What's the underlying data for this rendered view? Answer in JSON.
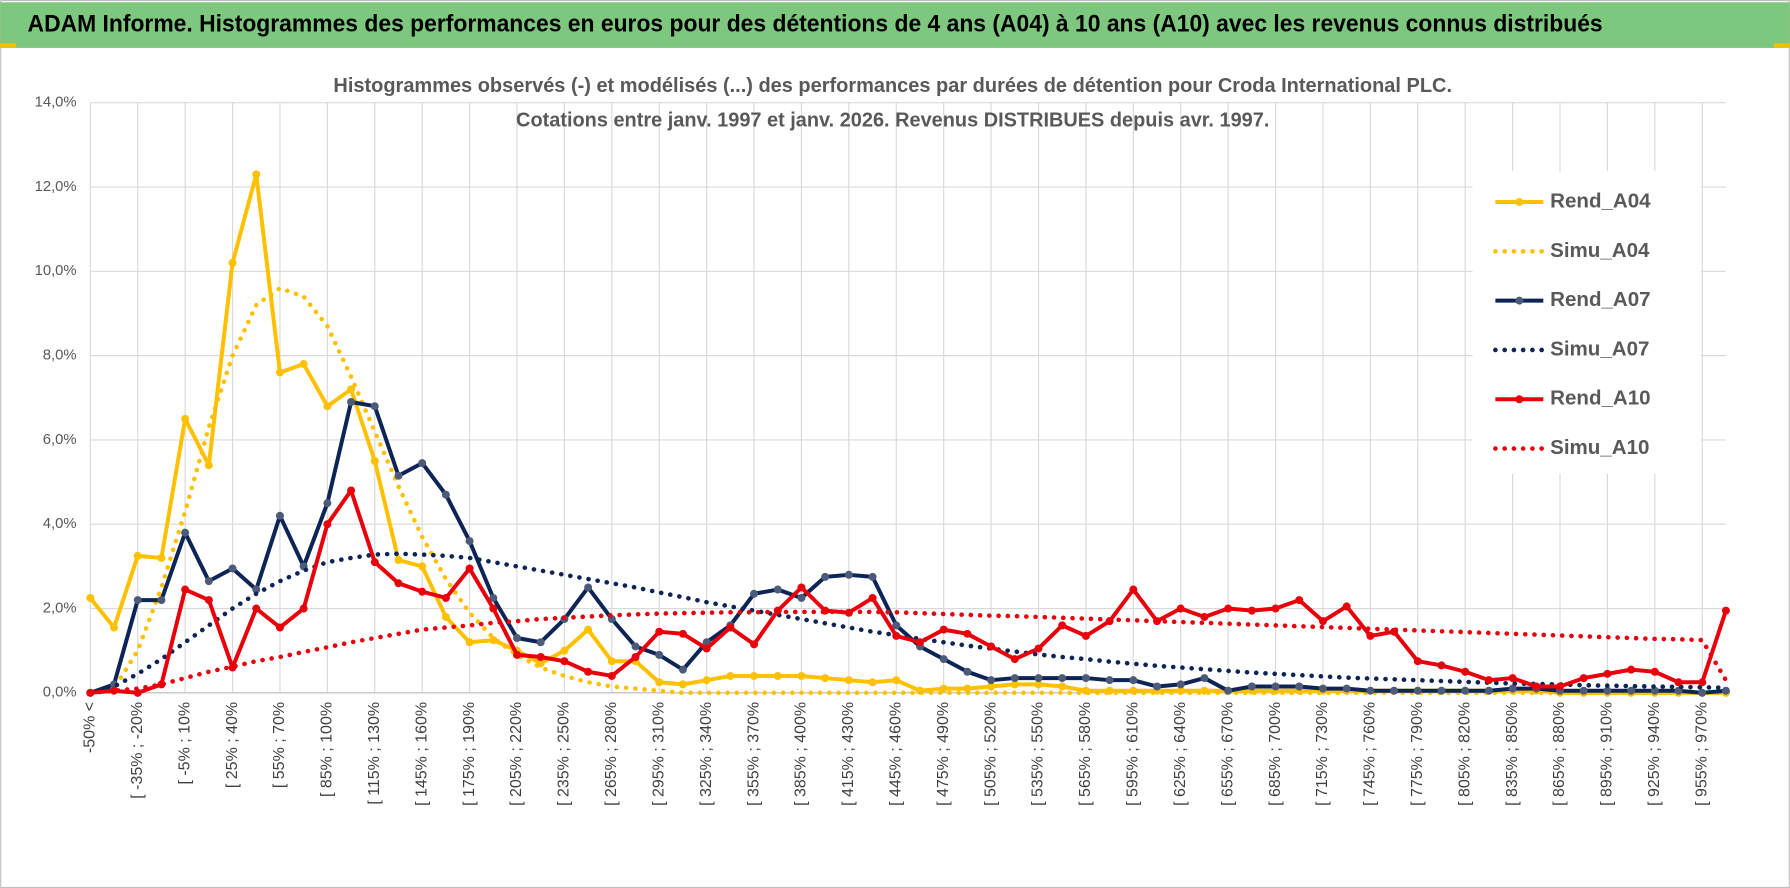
{
  "header": {
    "title": "ADAM Informe. Histogrammes des performances en euros pour des détentions de 4 ans (A04) à 10 ans (A10) avec les revenus connus distribués"
  },
  "chart_data": {
    "type": "line",
    "title": "Histogrammes observés (-) et modélisés (...) des performances par durées de détention pour Croda International PLC.",
    "subtitle": "Cotations entre janv. 1997 et janv. 2026. Revenus DISTRIBUES depuis avr. 1997.",
    "categories": [
      "-50% <",
      null,
      "[ -35% ; -20%",
      null,
      "[ -5% ; 10%",
      null,
      "[ 25% ; 40%",
      null,
      "[ 55% ; 70%",
      null,
      "[ 85% ; 100%",
      null,
      "[ 115% ; 130%",
      null,
      "[ 145% ; 160%",
      null,
      "[ 175% ; 190%",
      null,
      "[ 205% ; 220%",
      null,
      "[ 235% ; 250%",
      null,
      "[ 265% ; 280%",
      null,
      "[ 295% ; 310%",
      null,
      "[ 325% ; 340%",
      null,
      "[ 355% ; 370%",
      null,
      "[ 385% ; 400%",
      null,
      "[ 415% ; 430%",
      null,
      "[ 445% ; 460%",
      null,
      "[ 475% ; 490%",
      null,
      "[ 505% ; 520%",
      null,
      "[ 535% ; 550%",
      null,
      "[ 565% ; 580%",
      null,
      "[ 595% ; 610%",
      null,
      "[ 625% ; 640%",
      null,
      "[ 655% ; 670%",
      null,
      "[ 685% ; 700%",
      null,
      "[ 715% ; 730%",
      null,
      "[ 745% ; 760%",
      null,
      "[ 775% ; 790%",
      null,
      "[ 805% ; 820%",
      null,
      "[ 835% ; 850%",
      null,
      "[ 865% ; 880%",
      null,
      "[ 895% ; 910%",
      null,
      "[ 925% ; 940%",
      null,
      "[ 955% ; 970%",
      null
    ],
    "ylim": [
      0,
      14
    ],
    "yticks": [
      {
        "value": 0,
        "label": "0,0%"
      },
      {
        "value": 2,
        "label": "2,0%"
      },
      {
        "value": 4,
        "label": "4,0%"
      },
      {
        "value": 6,
        "label": "6,0%"
      },
      {
        "value": 8,
        "label": "8,0%"
      },
      {
        "value": 10,
        "label": "10,0%"
      },
      {
        "value": 12,
        "label": "12,0%"
      },
      {
        "value": 14,
        "label": "14,0%"
      }
    ],
    "grid": true,
    "legend": "right",
    "series": [
      {
        "name": "Rend_A04",
        "color": "#ffc000",
        "style": "solid",
        "markers": true,
        "values": [
          2.25,
          1.55,
          3.25,
          3.2,
          6.5,
          5.4,
          10.2,
          12.3,
          7.6,
          7.8,
          6.8,
          7.2,
          5.5,
          3.15,
          3.0,
          1.8,
          1.2,
          1.25,
          1.0,
          0.7,
          1.0,
          1.5,
          0.75,
          0.75,
          0.25,
          0.2,
          0.3,
          0.4,
          0.4,
          0.4,
          0.4,
          0.35,
          0.3,
          0.25,
          0.3,
          0.05,
          0.1,
          0.1,
          0.15,
          0.2,
          0.2,
          0.15,
          0.05,
          0.05,
          0.05,
          0.05,
          0.05,
          0.05,
          0.05,
          0.05,
          0.05,
          0.05,
          0.05,
          0.05,
          0.05,
          0.05,
          0.05,
          0.05,
          0.05,
          0.05,
          0.05,
          0.05,
          0,
          0,
          0,
          0,
          0,
          0,
          0,
          0
        ]
      },
      {
        "name": "Simu_A04",
        "color": "#ffc000",
        "style": "dotted",
        "markers": false,
        "values": [
          0,
          0.1,
          1.0,
          2.5,
          4.3,
          6.3,
          8.0,
          9.2,
          9.6,
          9.4,
          8.7,
          7.5,
          6.2,
          4.9,
          3.7,
          2.7,
          1.9,
          1.3,
          0.9,
          0.6,
          0.4,
          0.25,
          0.15,
          0.1,
          0.05,
          0,
          0,
          0,
          0,
          0,
          0,
          0,
          0,
          0,
          0,
          0,
          0,
          0,
          0,
          0,
          0,
          0,
          0,
          0,
          0,
          0,
          0,
          0,
          0,
          0,
          0,
          0,
          0,
          0,
          0,
          0,
          0,
          0,
          0,
          0,
          0,
          0,
          0,
          0,
          0,
          0,
          0,
          0,
          0,
          0
        ]
      },
      {
        "name": "Rend_A07",
        "color": "#0d2456",
        "style": "solid",
        "markers": true,
        "values": [
          0,
          0.2,
          2.2,
          2.2,
          3.8,
          2.65,
          2.95,
          2.45,
          4.2,
          3.0,
          4.5,
          6.9,
          6.8,
          5.15,
          5.45,
          4.7,
          3.6,
          2.25,
          1.3,
          1.2,
          1.75,
          2.5,
          1.75,
          1.1,
          0.9,
          0.55,
          1.2,
          1.6,
          2.35,
          2.45,
          2.25,
          2.75,
          2.8,
          2.75,
          1.6,
          1.1,
          0.8,
          0.5,
          0.3,
          0.35,
          0.35,
          0.35,
          0.35,
          0.3,
          0.3,
          0.15,
          0.2,
          0.35,
          0.05,
          0.15,
          0.15,
          0.15,
          0.1,
          0.1,
          0.05,
          0.05,
          0.05,
          0.05,
          0.05,
          0.05,
          0.1,
          0.1,
          0.05,
          0.05,
          0.05,
          0.05,
          0.05,
          0.05,
          0,
          0.05
        ]
      },
      {
        "name": "Simu_A07",
        "color": "#0d2456",
        "style": "dotted",
        "markers": false,
        "values": [
          0,
          0.15,
          0.45,
          0.8,
          1.2,
          1.6,
          2.0,
          2.35,
          2.65,
          2.9,
          3.1,
          3.2,
          3.28,
          3.3,
          3.28,
          3.25,
          3.2,
          3.1,
          3.0,
          2.9,
          2.8,
          2.7,
          2.6,
          2.5,
          2.38,
          2.27,
          2.15,
          2.05,
          1.95,
          1.85,
          1.75,
          1.65,
          1.55,
          1.45,
          1.37,
          1.28,
          1.2,
          1.12,
          1.05,
          0.98,
          0.91,
          0.85,
          0.8,
          0.74,
          0.69,
          0.64,
          0.6,
          0.56,
          0.52,
          0.48,
          0.45,
          0.42,
          0.39,
          0.36,
          0.34,
          0.32,
          0.3,
          0.28,
          0.26,
          0.24,
          0.22,
          0.21,
          0.2,
          0.18,
          0.17,
          0.16,
          0.15,
          0.14,
          0.13,
          0.12
        ]
      },
      {
        "name": "Rend_A10",
        "color": "#e8000b",
        "style": "solid",
        "markers": true,
        "values": [
          0,
          0.05,
          0,
          0.2,
          2.45,
          2.2,
          0.6,
          2.0,
          1.55,
          2.0,
          4.0,
          4.8,
          3.1,
          2.6,
          2.4,
          2.25,
          2.95,
          2.0,
          0.9,
          0.85,
          0.75,
          0.5,
          0.4,
          0.85,
          1.45,
          1.4,
          1.05,
          1.55,
          1.15,
          1.95,
          2.5,
          1.95,
          1.9,
          2.25,
          1.35,
          1.2,
          1.5,
          1.4,
          1.1,
          0.8,
          1.05,
          1.6,
          1.35,
          1.7,
          2.45,
          1.7,
          2.0,
          1.8,
          2.0,
          1.95,
          2.0,
          2.2,
          1.7,
          2.05,
          1.35,
          1.45,
          0.75,
          0.65,
          0.5,
          0.3,
          0.35,
          0.15,
          0.15,
          0.35,
          0.45,
          0.55,
          0.5,
          0.25,
          0.25,
          1.95
        ]
      },
      {
        "name": "Simu_A10",
        "color": "#e8000b",
        "style": "dotted",
        "markers": false,
        "values": [
          0,
          0.05,
          0.1,
          0.2,
          0.35,
          0.5,
          0.62,
          0.75,
          0.85,
          0.97,
          1.08,
          1.2,
          1.3,
          1.4,
          1.5,
          1.55,
          1.6,
          1.66,
          1.7,
          1.75,
          1.78,
          1.81,
          1.84,
          1.86,
          1.88,
          1.89,
          1.9,
          1.91,
          1.91,
          1.92,
          1.92,
          1.92,
          1.92,
          1.92,
          1.91,
          1.89,
          1.87,
          1.85,
          1.83,
          1.82,
          1.8,
          1.78,
          1.76,
          1.74,
          1.72,
          1.7,
          1.68,
          1.66,
          1.64,
          1.62,
          1.6,
          1.58,
          1.56,
          1.54,
          1.52,
          1.5,
          1.48,
          1.46,
          1.44,
          1.42,
          1.4,
          1.38,
          1.36,
          1.34,
          1.32,
          1.3,
          1.28,
          1.27,
          1.25,
          0.3
        ]
      }
    ]
  }
}
